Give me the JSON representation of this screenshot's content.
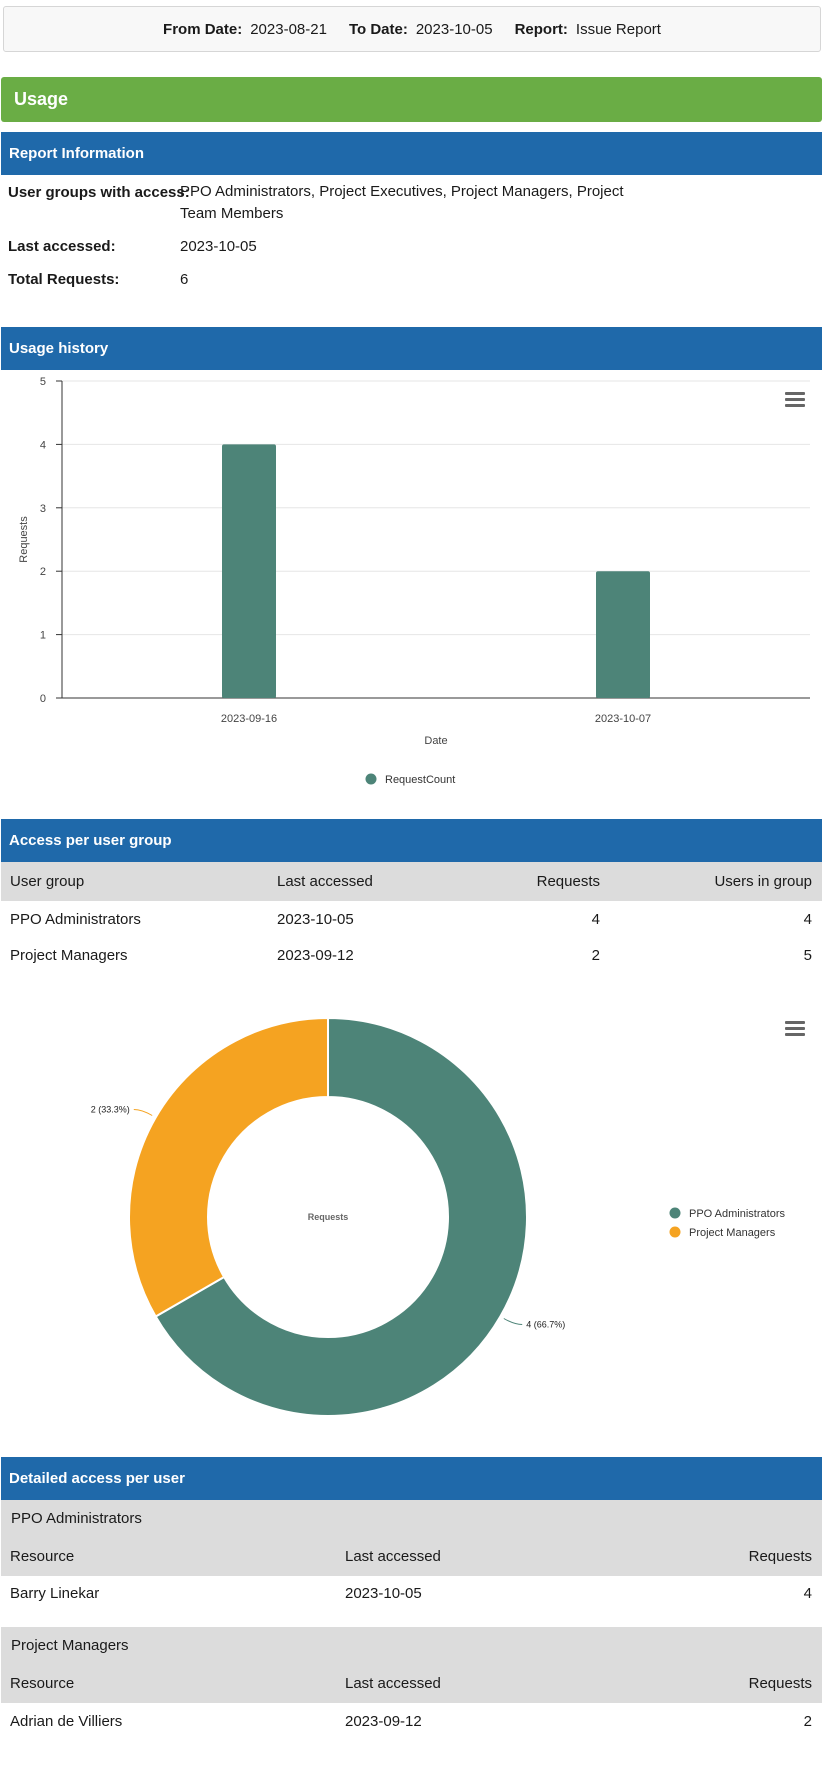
{
  "filters": {
    "from_label": "From Date:",
    "from_value": "2023-08-21",
    "to_label": "To Date:",
    "to_value": "2023-10-05",
    "report_label": "Report:",
    "report_value": "Issue Report"
  },
  "usage_title": "Usage",
  "report_info": {
    "title": "Report Information",
    "groups_label": "User groups with access:",
    "groups_value": "PPO Administrators,  Project Executives, Project Managers, Project Team Members",
    "last_accessed_label": "Last accessed:",
    "last_accessed_value": "2023-10-05",
    "total_requests_label": "Total Requests:",
    "total_requests_value": "6"
  },
  "usage_history": {
    "title": "Usage history",
    "menu_icon": "hamburger-menu-icon"
  },
  "chart_data": [
    {
      "type": "bar",
      "categories": [
        "2023-09-16",
        "2023-10-07"
      ],
      "series": [
        {
          "name": "RequestCount",
          "values": [
            4,
            2
          ],
          "color": "#4d8478"
        }
      ],
      "xlabel": "Date",
      "ylabel": "Requests",
      "ylim": [
        0,
        5
      ],
      "yticks": [
        "0",
        "1",
        "2",
        "3",
        "4",
        "5"
      ],
      "grid": true,
      "legend": "bottom-center"
    },
    {
      "type": "pie",
      "donut": true,
      "center_label": "Requests",
      "slices": [
        {
          "label": "PPO Administrators",
          "value": 4,
          "data_label": "4 (66.7%)",
          "color": "#4d8478"
        },
        {
          "label": "Project Managers",
          "value": 2,
          "data_label": "2 (33.3%)",
          "color": "#f5a321"
        }
      ],
      "legend": "right"
    }
  ],
  "access_per_group": {
    "title": "Access per user group",
    "headers": [
      "User group",
      "Last accessed",
      "Requests",
      "Users in group"
    ],
    "rows": [
      [
        "PPO Administrators",
        "2023-10-05",
        "4",
        "4"
      ],
      [
        "Project Managers",
        "2023-09-12",
        "2",
        "5"
      ]
    ]
  },
  "detailed_access": {
    "title": "Detailed access per user",
    "groups": [
      {
        "name": "PPO Administrators",
        "headers": [
          "Resource",
          "Last accessed",
          "Requests"
        ],
        "rows": [
          [
            "Barry Linekar",
            "2023-10-05",
            "4"
          ]
        ]
      },
      {
        "name": "Project Managers",
        "headers": [
          "Resource",
          "Last accessed",
          "Requests"
        ],
        "rows": [
          [
            "Adrian de Villiers",
            "2023-09-12",
            "2"
          ]
        ]
      }
    ]
  }
}
